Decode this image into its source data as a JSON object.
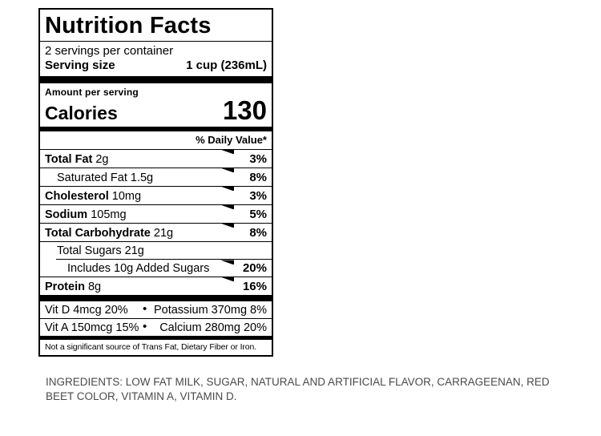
{
  "label": {
    "title": "Nutrition Facts",
    "servings_per_container": "2 servings per container",
    "serving_size_label": "Serving size",
    "serving_size_value": "1 cup (236mL)",
    "amount_per_serving": "Amount per serving",
    "calories_label": "Calories",
    "calories_value": "130",
    "daily_value_header": "% Daily Value*",
    "rows": [
      {
        "name": "Total Fat",
        "amount": "2g",
        "dv": "3%",
        "bold": true,
        "indent": 0,
        "flag": true
      },
      {
        "name": "Saturated Fat",
        "amount": "1.5g",
        "dv": "8%",
        "bold": false,
        "indent": 1,
        "flag": true
      },
      {
        "name": "Cholesterol",
        "amount": "10mg",
        "dv": "3%",
        "bold": true,
        "indent": 0,
        "flag": true
      },
      {
        "name": "Sodium",
        "amount": "105mg",
        "dv": "5%",
        "bold": true,
        "indent": 0,
        "flag": true
      },
      {
        "name": "Total Carbohydrate",
        "amount": "21g",
        "dv": "8%",
        "bold": true,
        "indent": 0,
        "flag": true
      },
      {
        "name": "Total Sugars",
        "amount": "21g",
        "dv": "",
        "bold": false,
        "indent": 1,
        "flag": false
      },
      {
        "name": "Includes 10g Added Sugars",
        "amount": "",
        "dv": "20%",
        "bold": false,
        "indent": 2,
        "flag": true,
        "indented_separator": true
      },
      {
        "name": "Protein",
        "amount": "8g",
        "dv": "16%",
        "bold": true,
        "indent": 0,
        "flag": true
      }
    ],
    "bullet": "•",
    "micronutrients": [
      {
        "left": "Vit D 4mcg 20%",
        "right": "Potassium 370mg 8%"
      },
      {
        "left": "Vit A 150mcg 15%",
        "right": "Calcium 280mg 20%"
      }
    ],
    "footnote": "Not a significant source of Trans Fat, Dietary Fiber or Iron."
  },
  "ingredients_text": "INGREDIENTS: LOW FAT MILK, SUGAR, NATURAL AND ARTIFICIAL FLAVOR, CARRAGEENAN, RED BEET COLOR, VITAMIN A, VITAMIN D.",
  "colors": {
    "label_border": "#000000",
    "label_text": "#000000",
    "ingredients_text": "#4a4a4a",
    "background": "#ffffff"
  }
}
